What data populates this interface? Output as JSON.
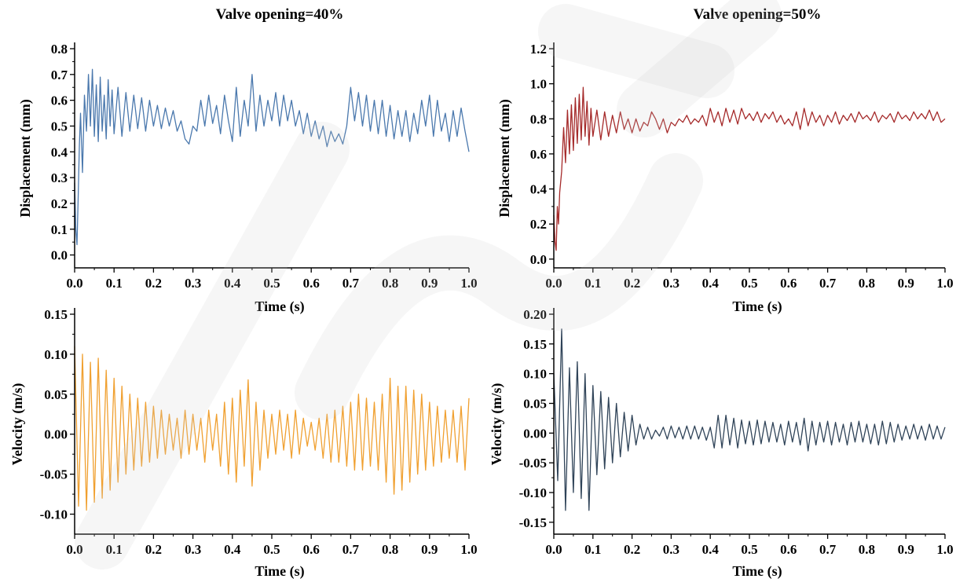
{
  "chart_data": [
    {
      "type": "line",
      "title": "Valve opening=40%",
      "xlabel": "Time (s)",
      "ylabel": "Displacement (mm)",
      "xlim": [
        0,
        1.0
      ],
      "ylim": [
        -0.05,
        0.8
      ],
      "xticks": [
        "0.0",
        "0.1",
        "0.2",
        "0.3",
        "0.4",
        "0.5",
        "0.6",
        "0.7",
        "0.8",
        "0.9",
        "1.0"
      ],
      "yticks": [
        "0.0",
        "0.1",
        "0.2",
        "0.3",
        "0.4",
        "0.5",
        "0.6",
        "0.7",
        "0.8"
      ],
      "color": "#4a78ad",
      "series": [
        {
          "x": [
            0,
            0.003,
            0.006,
            0.009,
            0.012,
            0.015,
            0.02,
            0.025,
            0.03,
            0.035,
            0.04,
            0.045,
            0.05,
            0.055,
            0.06,
            0.065,
            0.07,
            0.075,
            0.08,
            0.085,
            0.09,
            0.095,
            0.1,
            0.11,
            0.12,
            0.13,
            0.14,
            0.15,
            0.16,
            0.17,
            0.18,
            0.19,
            0.2,
            0.21,
            0.22,
            0.23,
            0.24,
            0.25,
            0.26,
            0.27,
            0.28,
            0.29,
            0.3,
            0.31,
            0.32,
            0.33,
            0.34,
            0.35,
            0.36,
            0.37,
            0.38,
            0.39,
            0.4,
            0.41,
            0.42,
            0.43,
            0.44,
            0.45,
            0.46,
            0.47,
            0.48,
            0.49,
            0.5,
            0.51,
            0.52,
            0.53,
            0.54,
            0.55,
            0.56,
            0.57,
            0.58,
            0.59,
            0.6,
            0.61,
            0.62,
            0.63,
            0.64,
            0.65,
            0.66,
            0.67,
            0.68,
            0.69,
            0.7,
            0.71,
            0.72,
            0.73,
            0.74,
            0.75,
            0.76,
            0.77,
            0.78,
            0.79,
            0.8,
            0.81,
            0.82,
            0.83,
            0.84,
            0.85,
            0.86,
            0.87,
            0.88,
            0.89,
            0.9,
            0.91,
            0.92,
            0.93,
            0.94,
            0.95,
            0.96,
            0.97,
            0.98,
            0.99,
            1.0
          ],
          "y": [
            0.28,
            0.1,
            0.04,
            0.22,
            0.42,
            0.55,
            0.32,
            0.62,
            0.48,
            0.7,
            0.5,
            0.72,
            0.46,
            0.66,
            0.44,
            0.69,
            0.48,
            0.62,
            0.45,
            0.68,
            0.5,
            0.64,
            0.47,
            0.65,
            0.46,
            0.63,
            0.48,
            0.62,
            0.49,
            0.61,
            0.48,
            0.6,
            0.5,
            0.58,
            0.49,
            0.57,
            0.5,
            0.56,
            0.48,
            0.52,
            0.45,
            0.43,
            0.5,
            0.48,
            0.6,
            0.5,
            0.62,
            0.51,
            0.58,
            0.47,
            0.62,
            0.52,
            0.44,
            0.65,
            0.46,
            0.6,
            0.5,
            0.7,
            0.48,
            0.62,
            0.5,
            0.6,
            0.52,
            0.63,
            0.5,
            0.62,
            0.52,
            0.6,
            0.5,
            0.56,
            0.47,
            0.55,
            0.46,
            0.52,
            0.45,
            0.5,
            0.42,
            0.48,
            0.44,
            0.47,
            0.43,
            0.5,
            0.65,
            0.52,
            0.63,
            0.5,
            0.62,
            0.48,
            0.6,
            0.47,
            0.6,
            0.46,
            0.58,
            0.45,
            0.56,
            0.46,
            0.56,
            0.44,
            0.55,
            0.47,
            0.6,
            0.5,
            0.62,
            0.46,
            0.6,
            0.48,
            0.55,
            0.44,
            0.56,
            0.46,
            0.57,
            0.48,
            0.4
          ]
        }
      ]
    },
    {
      "type": "line",
      "title": "Valve opening=50%",
      "xlabel": "Time (s)",
      "ylabel": "Displacement (mm)",
      "xlim": [
        0,
        1.0
      ],
      "ylim": [
        -0.05,
        1.2
      ],
      "xticks": [
        "0.0",
        "0.1",
        "0.2",
        "0.3",
        "0.4",
        "0.5",
        "0.6",
        "0.7",
        "0.8",
        "0.9",
        "1.0"
      ],
      "yticks": [
        "0.0",
        "0.2",
        "0.4",
        "0.6",
        "0.8",
        "1.0",
        "1.2"
      ],
      "color": "#a52a2a",
      "series": [
        {
          "x": [
            0,
            0.003,
            0.006,
            0.009,
            0.012,
            0.015,
            0.02,
            0.025,
            0.03,
            0.035,
            0.04,
            0.045,
            0.05,
            0.055,
            0.06,
            0.065,
            0.07,
            0.075,
            0.08,
            0.085,
            0.09,
            0.095,
            0.1,
            0.11,
            0.12,
            0.13,
            0.14,
            0.15,
            0.16,
            0.17,
            0.18,
            0.19,
            0.2,
            0.21,
            0.22,
            0.23,
            0.24,
            0.25,
            0.26,
            0.27,
            0.28,
            0.29,
            0.3,
            0.31,
            0.32,
            0.33,
            0.34,
            0.35,
            0.36,
            0.37,
            0.38,
            0.39,
            0.4,
            0.41,
            0.42,
            0.43,
            0.44,
            0.45,
            0.46,
            0.47,
            0.48,
            0.49,
            0.5,
            0.51,
            0.52,
            0.53,
            0.54,
            0.55,
            0.56,
            0.57,
            0.58,
            0.59,
            0.6,
            0.61,
            0.62,
            0.63,
            0.64,
            0.65,
            0.66,
            0.67,
            0.68,
            0.69,
            0.7,
            0.71,
            0.72,
            0.73,
            0.74,
            0.75,
            0.76,
            0.77,
            0.78,
            0.79,
            0.8,
            0.81,
            0.82,
            0.83,
            0.84,
            0.85,
            0.86,
            0.87,
            0.88,
            0.89,
            0.9,
            0.91,
            0.92,
            0.93,
            0.94,
            0.95,
            0.96,
            0.97,
            0.98,
            0.99,
            1.0
          ],
          "y": [
            0.25,
            0.1,
            0.05,
            0.3,
            0.2,
            0.38,
            0.5,
            0.75,
            0.55,
            0.85,
            0.6,
            0.88,
            0.62,
            0.92,
            0.66,
            0.94,
            0.68,
            0.98,
            0.7,
            0.9,
            0.65,
            0.86,
            0.7,
            0.85,
            0.68,
            0.84,
            0.7,
            0.82,
            0.72,
            0.84,
            0.74,
            0.8,
            0.72,
            0.8,
            0.73,
            0.78,
            0.76,
            0.84,
            0.8,
            0.74,
            0.8,
            0.72,
            0.78,
            0.76,
            0.8,
            0.78,
            0.82,
            0.77,
            0.8,
            0.78,
            0.82,
            0.76,
            0.86,
            0.78,
            0.84,
            0.76,
            0.86,
            0.78,
            0.85,
            0.77,
            0.86,
            0.8,
            0.83,
            0.79,
            0.84,
            0.78,
            0.83,
            0.8,
            0.84,
            0.78,
            0.82,
            0.77,
            0.8,
            0.76,
            0.84,
            0.74,
            0.86,
            0.76,
            0.84,
            0.78,
            0.82,
            0.76,
            0.82,
            0.78,
            0.84,
            0.77,
            0.82,
            0.79,
            0.83,
            0.78,
            0.84,
            0.8,
            0.82,
            0.79,
            0.84,
            0.78,
            0.82,
            0.8,
            0.83,
            0.78,
            0.84,
            0.8,
            0.82,
            0.79,
            0.84,
            0.8,
            0.83,
            0.8,
            0.85,
            0.79,
            0.84,
            0.78,
            0.8
          ]
        }
      ]
    },
    {
      "type": "line",
      "title": "",
      "xlabel": "Time (s)",
      "ylabel": "Velocity (m/s)",
      "xlim": [
        0,
        1.0
      ],
      "ylim": [
        -0.125,
        0.15
      ],
      "xticks": [
        "0.0",
        "0.1",
        "0.2",
        "0.3",
        "0.4",
        "0.5",
        "0.6",
        "0.7",
        "0.8",
        "0.9",
        "1.0"
      ],
      "yticks": [
        "-0.10",
        "-0.05",
        "0.00",
        "0.05",
        "0.10",
        "0.15"
      ],
      "color": "#f0a030",
      "series": [
        {
          "x": [
            0,
            0.01,
            0.02,
            0.03,
            0.04,
            0.05,
            0.06,
            0.07,
            0.08,
            0.09,
            0.1,
            0.11,
            0.12,
            0.13,
            0.14,
            0.15,
            0.16,
            0.17,
            0.18,
            0.19,
            0.2,
            0.21,
            0.22,
            0.23,
            0.24,
            0.25,
            0.26,
            0.27,
            0.28,
            0.29,
            0.3,
            0.31,
            0.32,
            0.33,
            0.34,
            0.35,
            0.36,
            0.37,
            0.38,
            0.39,
            0.4,
            0.41,
            0.42,
            0.43,
            0.44,
            0.45,
            0.46,
            0.47,
            0.48,
            0.49,
            0.5,
            0.51,
            0.52,
            0.53,
            0.54,
            0.55,
            0.56,
            0.57,
            0.58,
            0.59,
            0.6,
            0.61,
            0.62,
            0.63,
            0.64,
            0.65,
            0.66,
            0.67,
            0.68,
            0.69,
            0.7,
            0.71,
            0.72,
            0.73,
            0.74,
            0.75,
            0.76,
            0.77,
            0.78,
            0.79,
            0.8,
            0.81,
            0.82,
            0.83,
            0.84,
            0.85,
            0.86,
            0.87,
            0.88,
            0.89,
            0.9,
            0.91,
            0.92,
            0.93,
            0.94,
            0.95,
            0.96,
            0.97,
            0.98,
            0.99,
            1.0
          ],
          "y": [
            0.11,
            -0.09,
            0.1,
            -0.095,
            0.09,
            -0.085,
            0.095,
            -0.08,
            0.08,
            -0.07,
            0.07,
            -0.06,
            0.06,
            -0.05,
            0.05,
            -0.045,
            0.045,
            -0.04,
            0.04,
            -0.035,
            0.035,
            -0.03,
            0.03,
            -0.025,
            0.025,
            -0.02,
            0.02,
            -0.03,
            0.03,
            -0.025,
            0.025,
            -0.02,
            0.02,
            -0.035,
            0.03,
            -0.02,
            0.025,
            -0.04,
            0.04,
            -0.05,
            0.045,
            -0.06,
            0.055,
            -0.04,
            0.068,
            -0.065,
            0.04,
            -0.045,
            0.03,
            -0.03,
            0.025,
            -0.025,
            0.03,
            -0.02,
            0.025,
            -0.03,
            0.03,
            -0.025,
            0.02,
            -0.015,
            0.015,
            -0.02,
            0.02,
            -0.03,
            0.025,
            -0.035,
            0.03,
            -0.035,
            0.035,
            -0.04,
            0.04,
            -0.045,
            0.05,
            -0.045,
            0.045,
            -0.04,
            0.04,
            -0.045,
            0.05,
            -0.06,
            0.07,
            -0.075,
            0.06,
            -0.07,
            0.06,
            -0.06,
            0.055,
            -0.05,
            0.05,
            -0.045,
            0.04,
            -0.04,
            0.035,
            -0.035,
            0.03,
            -0.03,
            0.03,
            -0.035,
            0.035,
            -0.045,
            0.045
          ]
        }
      ]
    },
    {
      "type": "line",
      "title": "",
      "xlabel": "Time (s)",
      "ylabel": "Velocity (m/s)",
      "xlim": [
        0,
        1.0
      ],
      "ylim": [
        -0.17,
        0.2
      ],
      "xticks": [
        "0.0",
        "0.1",
        "0.2",
        "0.3",
        "0.4",
        "0.5",
        "0.6",
        "0.7",
        "0.8",
        "0.9",
        "1.0"
      ],
      "yticks": [
        "-0.15",
        "-0.10",
        "-0.05",
        "0.00",
        "0.05",
        "0.10",
        "0.15",
        "0.20"
      ],
      "color": "#2f4358",
      "series": [
        {
          "x": [
            0,
            0.01,
            0.02,
            0.03,
            0.04,
            0.05,
            0.06,
            0.07,
            0.08,
            0.09,
            0.1,
            0.11,
            0.12,
            0.13,
            0.14,
            0.15,
            0.16,
            0.17,
            0.18,
            0.19,
            0.2,
            0.21,
            0.22,
            0.23,
            0.24,
            0.25,
            0.26,
            0.27,
            0.28,
            0.29,
            0.3,
            0.31,
            0.32,
            0.33,
            0.34,
            0.35,
            0.36,
            0.37,
            0.38,
            0.39,
            0.4,
            0.41,
            0.42,
            0.43,
            0.44,
            0.45,
            0.46,
            0.47,
            0.48,
            0.49,
            0.5,
            0.51,
            0.52,
            0.53,
            0.54,
            0.55,
            0.56,
            0.57,
            0.58,
            0.59,
            0.6,
            0.61,
            0.62,
            0.63,
            0.64,
            0.65,
            0.66,
            0.67,
            0.68,
            0.69,
            0.7,
            0.71,
            0.72,
            0.73,
            0.74,
            0.75,
            0.76,
            0.77,
            0.78,
            0.79,
            0.8,
            0.81,
            0.82,
            0.83,
            0.84,
            0.85,
            0.86,
            0.87,
            0.88,
            0.89,
            0.9,
            0.91,
            0.92,
            0.93,
            0.94,
            0.95,
            0.96,
            0.97,
            0.98,
            0.99,
            1.0
          ],
          "y": [
            0.1,
            -0.08,
            0.175,
            -0.13,
            0.11,
            -0.1,
            0.12,
            -0.11,
            0.1,
            -0.13,
            0.08,
            -0.07,
            0.07,
            -0.06,
            0.06,
            -0.05,
            0.05,
            -0.04,
            0.035,
            -0.03,
            0.03,
            -0.02,
            0.015,
            -0.01,
            0.01,
            -0.01,
            0.005,
            -0.005,
            0.01,
            -0.01,
            0.012,
            -0.008,
            0.01,
            -0.01,
            0.012,
            -0.01,
            0.012,
            -0.01,
            0.01,
            -0.012,
            0.01,
            -0.025,
            0.03,
            -0.025,
            0.03,
            -0.02,
            0.025,
            -0.025,
            0.022,
            -0.018,
            0.02,
            -0.02,
            0.022,
            -0.018,
            0.02,
            -0.015,
            0.018,
            -0.015,
            0.015,
            -0.02,
            0.02,
            -0.015,
            0.018,
            -0.02,
            0.025,
            -0.03,
            0.02,
            -0.02,
            0.018,
            -0.015,
            0.02,
            -0.02,
            0.018,
            -0.015,
            0.015,
            -0.02,
            0.018,
            -0.015,
            0.02,
            -0.015,
            0.015,
            -0.018,
            0.015,
            -0.02,
            0.02,
            -0.018,
            0.018,
            -0.015,
            0.015,
            -0.012,
            0.012,
            -0.01,
            0.015,
            -0.01,
            0.012,
            -0.012,
            0.015,
            -0.01,
            0.012,
            -0.01,
            0.01
          ]
        }
      ]
    }
  ]
}
